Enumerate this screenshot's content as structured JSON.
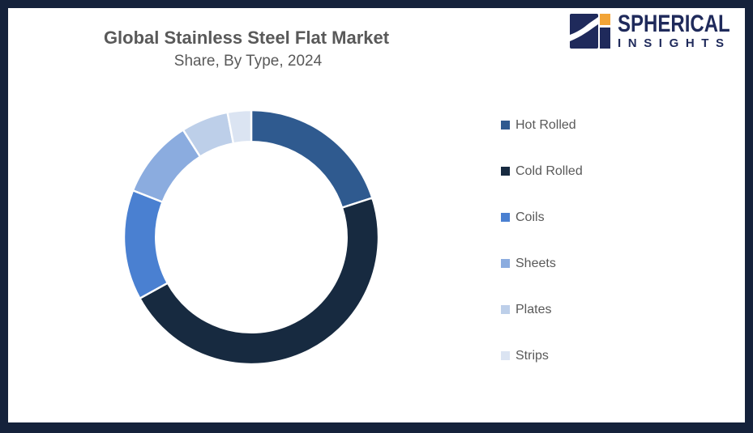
{
  "header": {
    "title_line1": "Global Stainless Steel Flat Market",
    "title_line2": "Share, By Type, 2024"
  },
  "logo": {
    "brand_line1": "SPHERICAL",
    "brand_line2": "INSIGHTS",
    "navy": "#1F2A5B",
    "orange": "#F2A436"
  },
  "frame": {
    "border_color": "#15223B",
    "background": "#FFFFFF"
  },
  "chart_data": {
    "type": "pie",
    "subtype": "donut",
    "title": "Global Stainless Steel Flat Market Share, By Type, 2024",
    "values_unit": "percent share, estimated from arc angles",
    "start_angle_deg": 0,
    "direction": "clockwise",
    "inner_radius_ratio": 0.75,
    "slice_gap_color": "#FFFFFF",
    "legend_position": "right",
    "text_color": "#595959",
    "series": [
      {
        "label": "Hot Rolled",
        "value": 20,
        "color": "#2F5A8F"
      },
      {
        "label": "Cold Rolled",
        "value": 47,
        "color": "#172A40"
      },
      {
        "label": "Coils",
        "value": 14,
        "color": "#4A80D1"
      },
      {
        "label": "Sheets",
        "value": 10,
        "color": "#8BACDF"
      },
      {
        "label": "Plates",
        "value": 6,
        "color": "#BDCFE9"
      },
      {
        "label": "Strips",
        "value": 3,
        "color": "#DBE4F2"
      }
    ]
  }
}
